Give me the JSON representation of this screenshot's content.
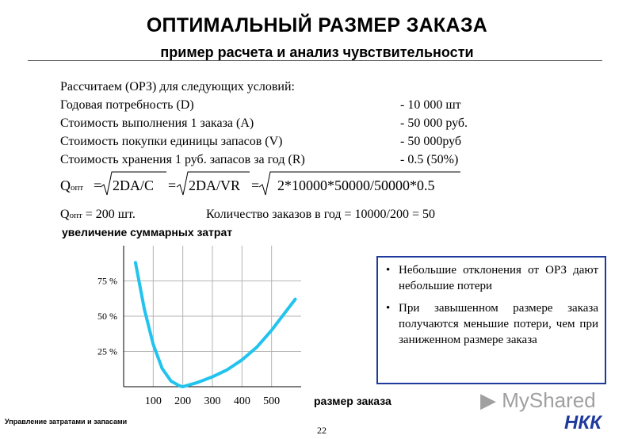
{
  "header": {
    "title": "ОПТИМАЛЬНЫЙ РАЗМЕР ЗАКАЗА",
    "subtitle": "пример расчета и анализ чувствительности"
  },
  "conditions": {
    "intro": "Рассчитаем (ОРЗ) для следующих условий:",
    "rows": [
      {
        "label": "Годовая потребность (D)",
        "value": "- 10 000 шт"
      },
      {
        "label": "Стоимость выполнения 1 заказа (A)",
        "value": "- 50 000 руб."
      },
      {
        "label": "Стоимость покупки единицы запасов (V)",
        "value": "- 50 000руб"
      },
      {
        "label": "Стоимость хранения 1 руб. запасов за год (R)",
        "value": "- 0.5 (50%)"
      }
    ]
  },
  "formula": {
    "q": "Q",
    "q_sub": "опт",
    "eq1": "=",
    "f1": "2DA/C",
    "eq2": "=",
    "f2": "2DA/VR",
    "eq3": "=",
    "f3": "2*10000*50000/50000*0.5"
  },
  "result": {
    "q": "Q",
    "q_sub": "опт",
    "value": "= 200 шт.",
    "orders": "Количество заказов в год = 10000/200 = 50"
  },
  "chart_data": {
    "type": "line",
    "ylabel": "увеличение суммарных затрат",
    "xlabel": "размер заказа",
    "x_ticks": [
      "100",
      "200",
      "300",
      "400",
      "500"
    ],
    "y_ticks": [
      "75 %",
      "50 %",
      "25 %"
    ],
    "series": [
      {
        "points": [
          [
            40,
            88
          ],
          [
            70,
            55
          ],
          [
            100,
            30
          ],
          [
            130,
            13
          ],
          [
            160,
            4
          ],
          [
            190,
            0.5
          ],
          [
            200,
            0
          ],
          [
            250,
            3
          ],
          [
            300,
            7
          ],
          [
            350,
            12
          ],
          [
            400,
            19
          ],
          [
            450,
            28
          ],
          [
            500,
            40
          ],
          [
            540,
            51
          ],
          [
            580,
            62
          ]
        ]
      }
    ],
    "xlim": [
      0,
      600
    ],
    "ylim": [
      0,
      100
    ],
    "grid": true,
    "line_color": "#22c3ee"
  },
  "notes": [
    "Небольшие отклонения от ОРЗ дают небольшие потери",
    "При завышенном размере заказа получаются меньшие потери, чем при заниженном размере заказа"
  ],
  "footer": {
    "left": "Управление затратами и запасами",
    "page": "22",
    "brand": "MyShared",
    "logo": "НКК"
  },
  "colors": {
    "accent": "#1f3a9c",
    "curve": "#22c3ee"
  }
}
